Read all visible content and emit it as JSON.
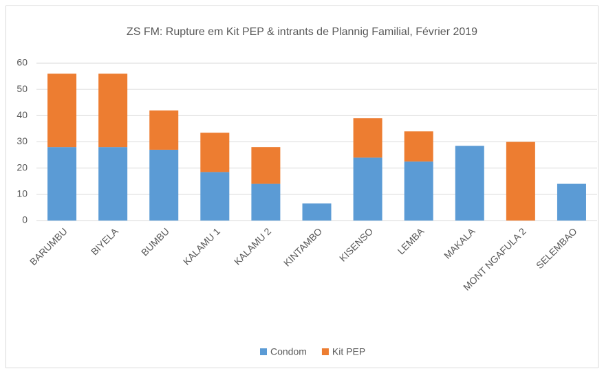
{
  "chart_data": {
    "type": "stacked_bar",
    "title": "ZS FM: Rupture em Kit PEP & intrants de Plannig Familial, Février 2019",
    "categories": [
      "BARUMBU",
      "BIYELA",
      "BUMBU",
      "KALAMU 1",
      "KALAMU 2",
      "KINTAMBO",
      "KISENSO",
      "LEMBA",
      "MAKALA",
      "MONT NGAFULA 2",
      "SELEMBAO"
    ],
    "series": [
      {
        "name": "Condom",
        "color": "#5b9bd5",
        "values": [
          28,
          28,
          27,
          18.5,
          14,
          6.5,
          24,
          22.5,
          28.5,
          0,
          14
        ]
      },
      {
        "name": "Kit PEP",
        "color": "#ed7d31",
        "values": [
          28,
          28,
          15,
          15,
          14,
          0,
          15,
          11.5,
          0,
          30,
          0
        ]
      }
    ],
    "ylim": [
      0,
      60
    ],
    "yticks": [
      0,
      10,
      20,
      30,
      40,
      50,
      60
    ],
    "grid": true,
    "legend": "bottom"
  }
}
